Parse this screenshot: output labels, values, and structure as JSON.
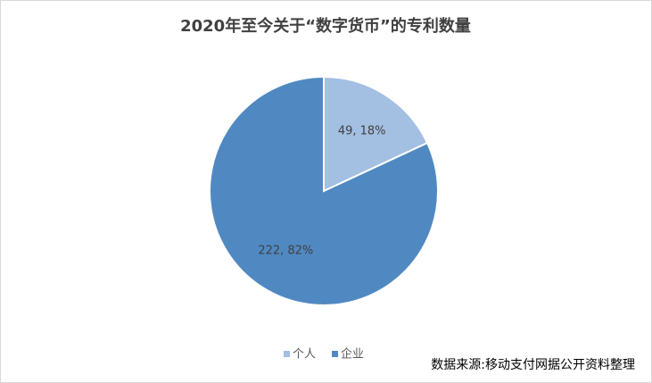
{
  "chart_data": {
    "type": "pie",
    "title": "2020年至今关于“数字货币”的专利数量",
    "categories": [
      "个人",
      "企业"
    ],
    "values": [
      49,
      222
    ],
    "value_labels": [
      "49, 18%",
      "222, 82%"
    ],
    "colors": [
      "#a3bfe2",
      "#5089c2"
    ],
    "legend": "bottom",
    "source": "数据来源:移动支付网据公开资料整理"
  }
}
